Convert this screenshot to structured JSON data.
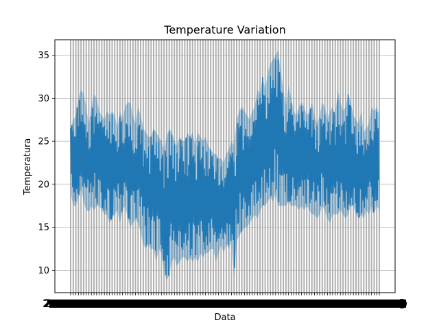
{
  "chart_data": {
    "type": "line",
    "title": "Temperature Variation",
    "xlabel": "Data",
    "ylabel": "Temperatura",
    "ylim": [
      7.4,
      36.8
    ],
    "y_ticks": [
      10,
      15,
      20,
      25,
      30,
      35
    ],
    "y_tick_labels": [
      "10",
      "15",
      "20",
      "25",
      "30",
      "35"
    ],
    "x_tick_labels_note": "x tick labels are dense dates that overlap into an unreadable band",
    "grid": true,
    "colors": {
      "line": "#1f77b4",
      "grid": "#b0b0b0",
      "axes": "#000000"
    },
    "x_count": 120,
    "series": [
      {
        "low": [
          19.0,
          17.5,
          17.5,
          18.5,
          19.5,
          18.0,
          17.0,
          16.8,
          17.5,
          17.0,
          17.5,
          17.5,
          17.0,
          16.5,
          16.5,
          15.5,
          16.0,
          16.5,
          17.0,
          15.5,
          17.0,
          17.5,
          16.0,
          15.0,
          15.5,
          16.0,
          15.5,
          14.5,
          13.0,
          12.5,
          13.0,
          12.5,
          12.5,
          11.0,
          12.5,
          12.0,
          10.0,
          8.8,
          9.5,
          11.0,
          11.5,
          10.5,
          11.0,
          11.5,
          11.5,
          11.0,
          11.5,
          11.0,
          11.5,
          11.0,
          12.0,
          11.5,
          12.0,
          12.0,
          12.5,
          12.5,
          11.0,
          12.0,
          13.0,
          12.0,
          13.0,
          12.5,
          13.5,
          9.0,
          13.5,
          14.0,
          14.5,
          15.0,
          15.0,
          15.5,
          16.0,
          16.5,
          16.0,
          17.0,
          17.5,
          17.5,
          18.0,
          18.5,
          18.0,
          19.0,
          17.5,
          17.5,
          17.5,
          17.5,
          18.0,
          17.5,
          17.5,
          17.5,
          17.0,
          17.5,
          17.0,
          17.5,
          17.0,
          16.5,
          16.5,
          16.0,
          16.5,
          17.5,
          17.0,
          16.0,
          15.5,
          16.5,
          16.5,
          16.5,
          17.0,
          16.5,
          16.0,
          16.5,
          17.5,
          17.5,
          16.5,
          16.0,
          16.5,
          16.0,
          17.0,
          16.5,
          17.5,
          16.5,
          17.5,
          17.0
        ],
        "high": [
          26.5,
          27.5,
          28.0,
          30.0,
          31.0,
          30.5,
          29.0,
          27.0,
          29.0,
          30.5,
          30.0,
          28.5,
          28.0,
          27.5,
          28.5,
          28.0,
          28.5,
          28.0,
          26.5,
          28.5,
          27.5,
          29.0,
          29.5,
          29.5,
          28.0,
          27.0,
          29.0,
          28.0,
          26.5,
          26.0,
          25.5,
          25.5,
          26.5,
          26.0,
          25.5,
          25.0,
          24.0,
          25.5,
          26.5,
          26.0,
          25.0,
          24.5,
          25.5,
          25.0,
          25.0,
          26.0,
          25.5,
          26.0,
          24.5,
          26.0,
          25.5,
          25.0,
          25.5,
          24.5,
          24.0,
          23.5,
          23.5,
          23.0,
          23.0,
          22.5,
          23.5,
          24.0,
          25.0,
          24.5,
          27.5,
          28.5,
          29.0,
          28.5,
          28.0,
          27.5,
          28.5,
          29.0,
          31.0,
          30.5,
          32.5,
          31.0,
          33.0,
          34.0,
          34.5,
          35.0,
          35.6,
          33.0,
          31.0,
          29.0,
          31.5,
          30.0,
          28.5,
          28.0,
          29.0,
          29.5,
          29.0,
          28.0,
          28.5,
          29.5,
          28.0,
          27.0,
          28.0,
          29.5,
          29.0,
          27.5,
          28.5,
          29.0,
          28.0,
          31.0,
          29.5,
          28.5,
          29.0,
          30.5,
          29.5,
          28.0,
          27.5,
          27.0,
          28.5,
          26.0,
          26.5,
          27.0,
          29.0,
          28.5,
          29.0,
          28.0
        ]
      }
    ]
  }
}
